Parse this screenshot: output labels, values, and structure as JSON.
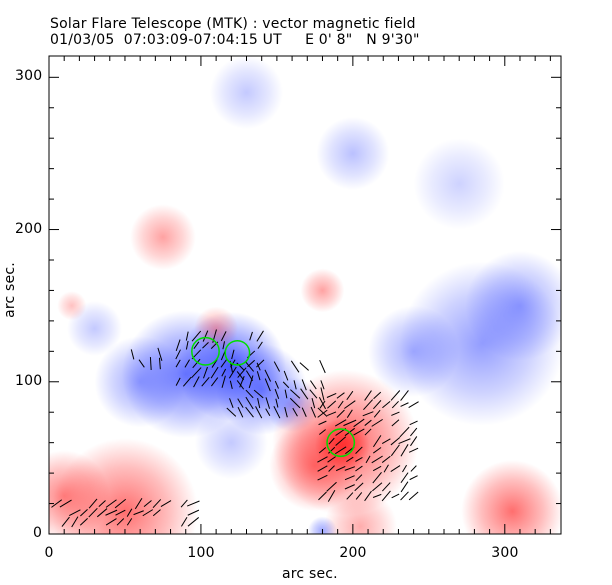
{
  "chart_data": {
    "type": "heatmap",
    "title": "Solar Flare Telescope (MTK) : vector magnetic field",
    "subtitle": "01/03/05  07:03:09-07:04:15 UT     E 0' 8\"   N 9'30\"",
    "xlabel": "arc sec.",
    "ylabel": "arc sec.",
    "xlim": [
      0,
      337
    ],
    "ylim": [
      0,
      314
    ],
    "xticks": [
      0,
      100,
      200,
      300
    ],
    "yticks": [
      0,
      100,
      200,
      300
    ],
    "colors": {
      "positive": "#ff3030",
      "negative": "#3a4cff",
      "vectors": "#000000",
      "contour": "#00dd00"
    },
    "regions": [
      {
        "polarity": "negative",
        "x": 90,
        "y": 105,
        "r": 35,
        "strength": 0.75
      },
      {
        "polarity": "negative",
        "x": 120,
        "y": 110,
        "r": 30,
        "strength": 0.9
      },
      {
        "polarity": "negative",
        "x": 140,
        "y": 95,
        "r": 25,
        "strength": 0.7
      },
      {
        "polarity": "negative",
        "x": 60,
        "y": 100,
        "r": 25,
        "strength": 0.5
      },
      {
        "polarity": "negative",
        "x": 160,
        "y": 85,
        "r": 15,
        "strength": 0.5
      },
      {
        "polarity": "negative",
        "x": 285,
        "y": 125,
        "r": 45,
        "strength": 0.55
      },
      {
        "polarity": "negative",
        "x": 310,
        "y": 150,
        "r": 30,
        "strength": 0.5
      },
      {
        "polarity": "negative",
        "x": 240,
        "y": 120,
        "r": 25,
        "strength": 0.45
      },
      {
        "polarity": "negative",
        "x": 200,
        "y": 250,
        "r": 20,
        "strength": 0.35
      },
      {
        "polarity": "negative",
        "x": 130,
        "y": 290,
        "r": 20,
        "strength": 0.3
      },
      {
        "polarity": "negative",
        "x": 270,
        "y": 230,
        "r": 25,
        "strength": 0.25
      },
      {
        "polarity": "negative",
        "x": 30,
        "y": 135,
        "r": 15,
        "strength": 0.3
      },
      {
        "polarity": "negative",
        "x": 120,
        "y": 60,
        "r": 20,
        "strength": 0.3
      },
      {
        "polarity": "negative",
        "x": 180,
        "y": 2,
        "r": 8,
        "strength": 0.5
      },
      {
        "polarity": "positive",
        "x": 195,
        "y": 60,
        "r": 40,
        "strength": 0.8
      },
      {
        "polarity": "positive",
        "x": 193,
        "y": 58,
        "r": 15,
        "strength": 1.0
      },
      {
        "polarity": "positive",
        "x": 175,
        "y": 45,
        "r": 25,
        "strength": 0.6
      },
      {
        "polarity": "positive",
        "x": 50,
        "y": 15,
        "r": 40,
        "strength": 0.7
      },
      {
        "polarity": "positive",
        "x": 10,
        "y": 25,
        "r": 25,
        "strength": 0.6
      },
      {
        "polarity": "positive",
        "x": 305,
        "y": 15,
        "r": 28,
        "strength": 0.7
      },
      {
        "polarity": "positive",
        "x": 75,
        "y": 195,
        "r": 18,
        "strength": 0.45
      },
      {
        "polarity": "positive",
        "x": 180,
        "y": 160,
        "r": 12,
        "strength": 0.45
      },
      {
        "polarity": "positive",
        "x": 205,
        "y": 5,
        "r": 20,
        "strength": 0.4
      },
      {
        "polarity": "positive",
        "x": 15,
        "y": 150,
        "r": 8,
        "strength": 0.3
      },
      {
        "polarity": "positive",
        "x": 110,
        "y": 135,
        "r": 12,
        "strength": 0.4
      }
    ],
    "vector_regions": [
      {
        "x0": 85,
        "x1": 140,
        "y0": 100,
        "y1": 135,
        "angle": 60
      },
      {
        "x0": 120,
        "x1": 180,
        "y0": 80,
        "y1": 110,
        "angle": 120
      },
      {
        "x0": 180,
        "x1": 240,
        "y0": 25,
        "y1": 95,
        "angle": 40
      },
      {
        "x0": 55,
        "x1": 75,
        "y0": 112,
        "y1": 122,
        "angle": 110
      },
      {
        "x0": 5,
        "x1": 95,
        "y0": 8,
        "y1": 20,
        "angle": 40
      }
    ],
    "contours": [
      {
        "x": 103,
        "y": 120,
        "r": 9
      },
      {
        "x": 124,
        "y": 119,
        "r": 8
      },
      {
        "x": 192,
        "y": 60,
        "r": 9
      }
    ]
  }
}
